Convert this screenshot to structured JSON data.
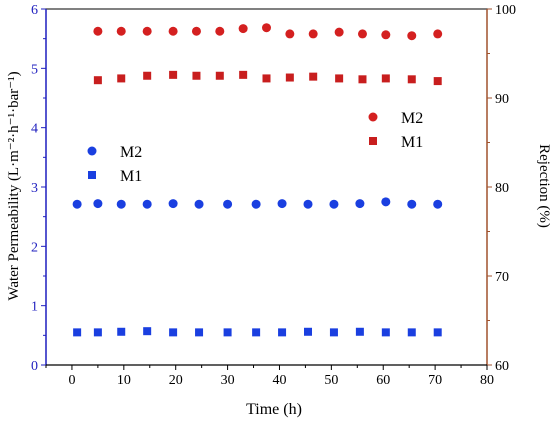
{
  "chart_data": {
    "type": "scatter",
    "xlabel": "Time (h)",
    "ylabel_left": "Water Permeability  (L·m⁻²·h⁻¹·bar⁻¹)",
    "ylabel_right": "Rejection (%)",
    "xlim": [
      -5,
      80
    ],
    "ylim_left": [
      0,
      6
    ],
    "ylim_right": [
      60,
      100
    ],
    "x_ticks": [
      "0",
      "10",
      "20",
      "30",
      "40",
      "50",
      "60",
      "70",
      "80"
    ],
    "y_left_ticks": [
      "0",
      "1",
      "2",
      "3",
      "4",
      "5",
      "6"
    ],
    "y_right_ticks": [
      "60",
      "70",
      "80",
      "90",
      "100"
    ],
    "colors": {
      "left_axis": "#1f1fbf",
      "right_axis": "#a0522d",
      "perm_M2": "#1a3fe0",
      "perm_M1": "#1a3fe0",
      "rej_M2": "#d42020",
      "rej_M1": "#c81e1e"
    },
    "legend_left": [
      {
        "label": "M2",
        "marker": "circle",
        "color": "#1a3fe0"
      },
      {
        "label": "M1",
        "marker": "square",
        "color": "#1a3fe0"
      }
    ],
    "legend_right": [
      {
        "label": "M2",
        "marker": "circle",
        "color": "#d42020"
      },
      {
        "label": "M1",
        "marker": "square",
        "color": "#c81e1e"
      }
    ],
    "series": [
      {
        "name": "M2",
        "axis": "left",
        "marker": "circle",
        "x": [
          1,
          5,
          9.5,
          14.5,
          19.5,
          24.5,
          30,
          35.5,
          40.5,
          45.5,
          50.5,
          55.5,
          60.5,
          65.5,
          70.5
        ],
        "y": [
          2.71,
          2.72,
          2.71,
          2.71,
          2.72,
          2.71,
          2.71,
          2.71,
          2.72,
          2.71,
          2.71,
          2.72,
          2.75,
          2.71,
          2.71
        ]
      },
      {
        "name": "M1",
        "axis": "left",
        "marker": "square",
        "x": [
          1,
          5,
          9.5,
          14.5,
          19.5,
          24.5,
          30,
          35.5,
          40.5,
          45.5,
          50.5,
          55.5,
          60.5,
          65.5,
          70.5
        ],
        "y": [
          0.55,
          0.55,
          0.56,
          0.57,
          0.55,
          0.55,
          0.55,
          0.55,
          0.55,
          0.56,
          0.55,
          0.56,
          0.55,
          0.55,
          0.55
        ]
      },
      {
        "name": "M2",
        "axis": "right",
        "marker": "circle",
        "x": [
          5,
          9.5,
          14.5,
          19.5,
          24,
          28.5,
          33,
          37.5,
          42,
          46.5,
          51.5,
          56,
          60.5,
          65.5,
          70.5
        ],
        "y": [
          97.5,
          97.5,
          97.5,
          97.5,
          97.5,
          97.5,
          97.8,
          97.9,
          97.2,
          97.2,
          97.4,
          97.2,
          97.1,
          97.0,
          97.2
        ]
      },
      {
        "name": "M1",
        "axis": "right",
        "marker": "square",
        "x": [
          5,
          9.5,
          14.5,
          19.5,
          24,
          28.5,
          33,
          37.5,
          42,
          46.5,
          51.5,
          56,
          60.5,
          65.5,
          70.5
        ],
        "y": [
          92.0,
          92.2,
          92.5,
          92.6,
          92.5,
          92.5,
          92.6,
          92.2,
          92.3,
          92.4,
          92.2,
          92.1,
          92.2,
          92.1,
          91.9
        ]
      }
    ]
  }
}
